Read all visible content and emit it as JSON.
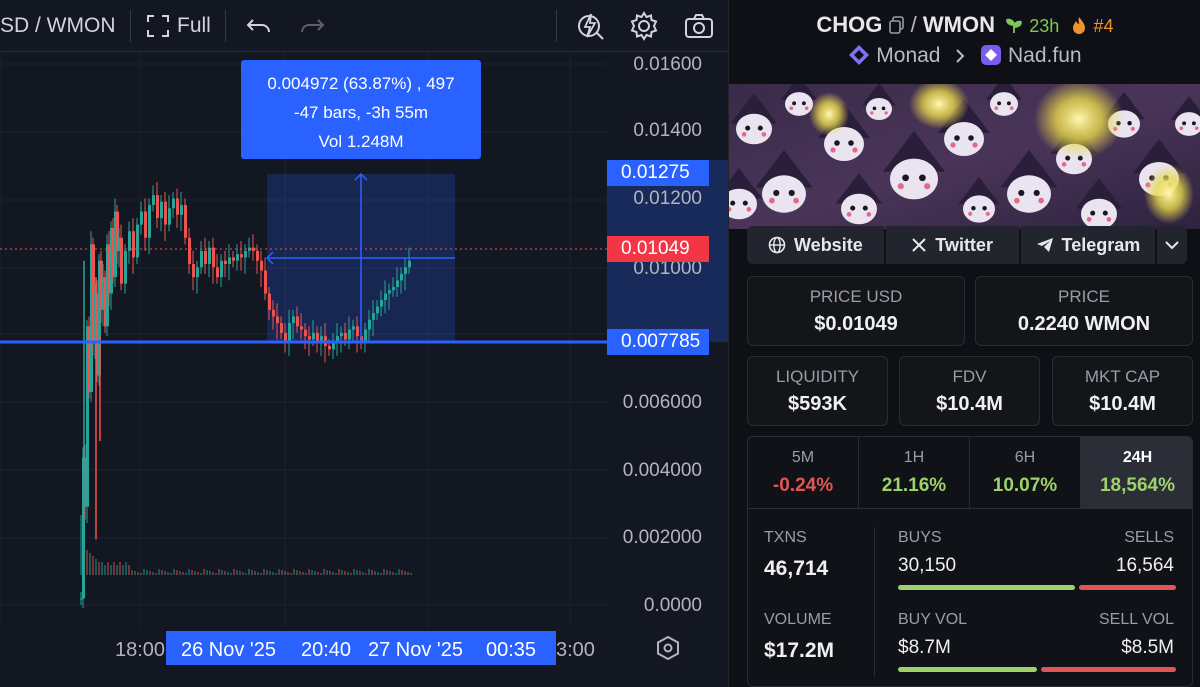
{
  "toolbar": {
    "pair_fragment": "SD / WMON",
    "fullscreen_label": "Full",
    "icons": [
      "fullscreen-icon",
      "undo-icon",
      "redo-icon",
      "indicator-lightning-icon",
      "settings-gear-icon",
      "camera-snapshot-icon"
    ]
  },
  "chart": {
    "price_axis": [
      "0.01600",
      "0.01400",
      "0.01200",
      "0.01000",
      "0.006000",
      "0.004000",
      "0.002000",
      "0.0000"
    ],
    "price_tags": {
      "measure_top": "0.01275",
      "current": "0.01049",
      "measure_base": "0.007785"
    },
    "measure_tooltip": {
      "line1": "0.004972 (63.87%) , 497",
      "line2": "-47 bars, -3h 55m",
      "line3": "Vol 1.248M"
    },
    "time_axis": {
      "left_label": "18:00",
      "right_label": "3:00",
      "range_start_date": "26 Nov '25",
      "range_start_time": "20:40",
      "range_end_date": "27 Nov '25",
      "range_end_time": "00:35"
    },
    "colors": {
      "up": "#26a69a",
      "down": "#ef5350",
      "accent": "#2962ff"
    }
  },
  "chart_data": {
    "type": "candlestick",
    "price_range": [
      0,
      0.0165
    ],
    "base_price": 0.007785,
    "current_price": 0.01049,
    "measured_change": "0.004972 (63.87%)"
  },
  "token": {
    "symbol": "CHOG",
    "quote": "WMON",
    "age": "23h",
    "rank": "#4",
    "chain": "Monad",
    "dex": "Nad.fun",
    "icons": [
      "copy-icon",
      "sprout-icon",
      "flame-icon",
      "monad-logo-icon",
      "nadfun-logo-icon",
      "chevron-right-icon"
    ]
  },
  "links": {
    "website": "Website",
    "twitter": "Twitter",
    "telegram": "Telegram"
  },
  "stats": {
    "price_usd_label": "PRICE USD",
    "price_usd": "$0.01049",
    "price_label": "PRICE",
    "price": "0.2240 WMON",
    "liquidity_label": "LIQUIDITY",
    "liquidity": "$593K",
    "fdv_label": "FDV",
    "fdv": "$10.4M",
    "mktcap_label": "MKT CAP",
    "mktcap": "$10.4M"
  },
  "periods": [
    {
      "label": "5M",
      "value": "-0.24%"
    },
    {
      "label": "1H",
      "value": "21.16%"
    },
    {
      "label": "6H",
      "value": "10.07%"
    },
    {
      "label": "24H",
      "value": "18,564%"
    }
  ],
  "trades": {
    "txns_label": "TXNS",
    "txns": "46,714",
    "buys_label": "BUYS",
    "buys": "30,150",
    "sells_label": "SELLS",
    "sells": "16,564",
    "buy_share": 0.645,
    "volume_label": "VOLUME",
    "volume": "$17.2M",
    "buy_vol_label": "BUY VOL",
    "buy_vol": "$8.7M",
    "sell_vol_label": "SELL VOL",
    "sell_vol": "$8.5M",
    "buy_vol_share": 0.506
  },
  "theme": {
    "green": "#9bd36a",
    "red": "#e05555"
  }
}
